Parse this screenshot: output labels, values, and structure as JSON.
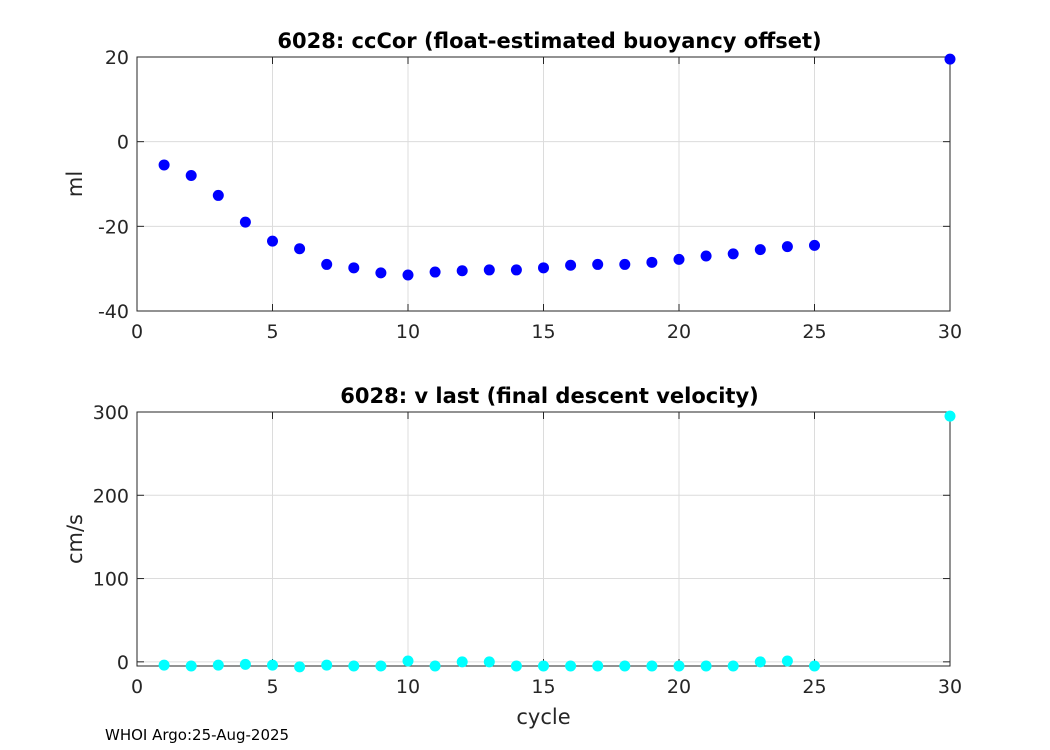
{
  "footer": "WHOI Argo:25-Aug-2025",
  "chart_data": [
    {
      "type": "scatter",
      "title": "6028: ccCor (float-estimated buoyancy offset)",
      "xlabel": "",
      "ylabel": "ml",
      "xlim": [
        0,
        30
      ],
      "ylim": [
        -40,
        20
      ],
      "xticks": [
        0,
        5,
        10,
        15,
        20,
        25,
        30
      ],
      "yticks": [
        -40,
        -20,
        0,
        20
      ],
      "grid": true,
      "color": "#0000ff",
      "series": [
        {
          "name": "ccCor",
          "x": [
            1,
            2,
            3,
            4,
            5,
            6,
            7,
            8,
            9,
            10,
            11,
            12,
            13,
            14,
            15,
            16,
            17,
            18,
            19,
            20,
            21,
            22,
            23,
            24,
            25,
            30
          ],
          "y": [
            -5.5,
            -8,
            -12.7,
            -19,
            -23.5,
            -25.3,
            -29,
            -29.8,
            -31,
            -31.5,
            -30.8,
            -30.5,
            -30.3,
            -30.3,
            -29.8,
            -29.2,
            -29,
            -29,
            -28.5,
            -27.8,
            -27,
            -26.5,
            -25.5,
            -24.8,
            -24.5,
            19.5
          ]
        }
      ]
    },
    {
      "type": "scatter",
      "title": "6028: v last (final descent velocity)",
      "xlabel": "cycle",
      "ylabel": "cm/s",
      "xlim": [
        0,
        30
      ],
      "ylim": [
        -5,
        300
      ],
      "xticks": [
        0,
        5,
        10,
        15,
        20,
        25,
        30
      ],
      "yticks": [
        0,
        100,
        200,
        300
      ],
      "grid": true,
      "color": "#00ffff",
      "series": [
        {
          "name": "v last",
          "x": [
            1,
            2,
            3,
            4,
            5,
            6,
            7,
            8,
            9,
            10,
            11,
            12,
            13,
            14,
            15,
            16,
            17,
            18,
            19,
            20,
            21,
            22,
            23,
            24,
            25,
            30
          ],
          "y": [
            -4,
            -5,
            -4,
            -3,
            -4,
            -6,
            -4,
            -5,
            -5,
            1,
            -5,
            0,
            0,
            -5,
            -5,
            -5,
            -5,
            -5,
            -5,
            -5,
            -5,
            -5,
            0,
            1,
            -5,
            295
          ]
        }
      ]
    }
  ]
}
